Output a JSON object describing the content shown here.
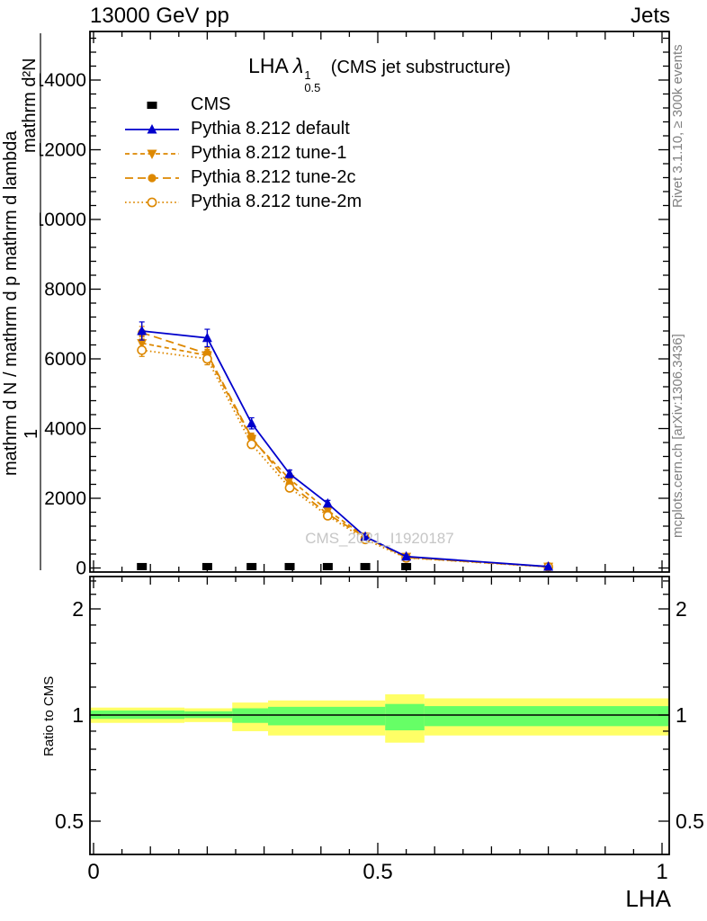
{
  "header": {
    "left": "13000 GeV pp",
    "right": "Jets"
  },
  "title": {
    "prefix": "LHA",
    "lambda": "λ",
    "sup": "1",
    "sub": "0.5",
    "suffix": "(CMS jet substructure)"
  },
  "ylabel": {
    "numerator": "mathrm d²N",
    "one": "1",
    "denominator": "mathrm d N / mathrm d p mathrm d lambda"
  },
  "ratio_ylabel": "Ratio to CMS",
  "xlabel": "LHA",
  "watermark": "CMS_2021_I1920187",
  "side_notes": {
    "top": "Rivet 3.1.10, ≥ 300k events",
    "bottom": "mcplots.cern.ch [arXiv:1306.3436]"
  },
  "colors": {
    "blue": "#0000cc",
    "orange": "#dd8800",
    "band_yellow": "#ffff66",
    "band_green": "#66ff66"
  },
  "legend": [
    {
      "label": "CMS",
      "marker": "square",
      "color": "#000000",
      "line": "none"
    },
    {
      "label": "Pythia 8.212 default",
      "marker": "triangle-up",
      "color": "#0000cc",
      "line": "solid"
    },
    {
      "label": "Pythia 8.212 tune-1",
      "marker": "triangle-down",
      "color": "#dd8800",
      "line": "dashed-short"
    },
    {
      "label": "Pythia 8.212 tune-2c",
      "marker": "circle",
      "color": "#dd8800",
      "line": "dashed"
    },
    {
      "label": "Pythia 8.212 tune-2m",
      "marker": "circle-open",
      "color": "#dd8800",
      "line": "dotted"
    }
  ],
  "chart_data": {
    "type": "line",
    "title": "LHA λ¹₀.₅ (CMS jet substructure)",
    "xlabel": "LHA",
    "ylabel": "d²N / (d p_T d λ)",
    "xlim": [
      -0.006,
      1.013
    ],
    "ylim": [
      0,
      15400
    ],
    "grid": false,
    "legend_position": "top-left",
    "x_ticks": [
      0,
      0.5,
      1
    ],
    "x_tick_labels": [
      "0",
      "0.5",
      "1"
    ],
    "y_ticks": [
      0,
      2000,
      4000,
      6000,
      8000,
      10000,
      12000,
      14000
    ],
    "series": [
      {
        "name": "CMS",
        "color": "#000000",
        "marker": "square",
        "line": "none",
        "x": [
          0.085,
          0.2,
          0.278,
          0.345,
          0.412,
          0.478,
          0.55
        ],
        "y": [
          40,
          40,
          40,
          40,
          40,
          40,
          40
        ]
      },
      {
        "name": "Pythia 8.212 tune-1",
        "color": "#dd8800",
        "marker": "triangle-down",
        "line": "dashed-short",
        "x": [
          0.085,
          0.2,
          0.278,
          0.345,
          0.412,
          0.478,
          0.55,
          0.8
        ],
        "y": [
          6450,
          6100,
          3700,
          2550,
          1650,
          900,
          320,
          35
        ],
        "yerr": [
          180,
          170,
          120,
          90,
          70,
          55,
          40,
          15
        ]
      },
      {
        "name": "Pythia 8.212 tune-2c",
        "color": "#dd8800",
        "marker": "circle",
        "line": "dashed",
        "x": [
          0.085,
          0.2,
          0.278,
          0.345,
          0.412,
          0.478,
          0.55,
          0.8
        ],
        "y": [
          6750,
          6150,
          3750,
          2400,
          1550,
          880,
          300,
          35
        ],
        "yerr": [
          180,
          170,
          120,
          90,
          70,
          55,
          40,
          15
        ]
      },
      {
        "name": "Pythia 8.212 tune-2m",
        "color": "#dd8800",
        "marker": "circle-open",
        "line": "dotted",
        "x": [
          0.085,
          0.2,
          0.278,
          0.345,
          0.412,
          0.478,
          0.55,
          0.8
        ],
        "y": [
          6250,
          6000,
          3550,
          2300,
          1500,
          820,
          290,
          30
        ],
        "yerr": [
          180,
          170,
          120,
          90,
          70,
          55,
          40,
          15
        ]
      },
      {
        "name": "Pythia 8.212 default",
        "color": "#0000cc",
        "marker": "triangle-up",
        "line": "solid",
        "x": [
          0.085,
          0.2,
          0.278,
          0.345,
          0.412,
          0.478,
          0.55,
          0.8
        ],
        "y": [
          6800,
          6600,
          4150,
          2700,
          1850,
          900,
          330,
          40
        ],
        "yerr": [
          260,
          250,
          160,
          110,
          90,
          70,
          45,
          18
        ]
      }
    ],
    "ratio": {
      "ylabel": "Ratio to CMS",
      "ylim": [
        0.4,
        2.47
      ],
      "scale": "log",
      "y_ticks": [
        0.5,
        1,
        2
      ],
      "y_tick_labels": [
        "0.5",
        "1",
        "2"
      ],
      "y_minor": [
        0.6,
        0.7,
        0.8,
        0.9,
        1.2,
        1.4,
        1.6,
        1.8,
        2.2,
        2.4
      ],
      "reference": 1,
      "bands": [
        {
          "x0": -0.006,
          "x1": 0.16,
          "yellow": [
            0.95,
            1.05
          ],
          "green": [
            0.975,
            1.03
          ]
        },
        {
          "x0": 0.16,
          "x1": 0.244,
          "yellow": [
            0.955,
            1.045
          ],
          "green": [
            0.98,
            1.025
          ]
        },
        {
          "x0": 0.244,
          "x1": 0.307,
          "yellow": [
            0.9,
            1.085
          ],
          "green": [
            0.95,
            1.045
          ]
        },
        {
          "x0": 0.307,
          "x1": 0.513,
          "yellow": [
            0.875,
            1.1
          ],
          "green": [
            0.935,
            1.055
          ]
        },
        {
          "x0": 0.513,
          "x1": 0.582,
          "yellow": [
            0.835,
            1.145
          ],
          "green": [
            0.905,
            1.075
          ]
        },
        {
          "x0": 0.582,
          "x1": 1.013,
          "yellow": [
            0.875,
            1.115
          ],
          "green": [
            0.93,
            1.06
          ]
        }
      ]
    }
  }
}
